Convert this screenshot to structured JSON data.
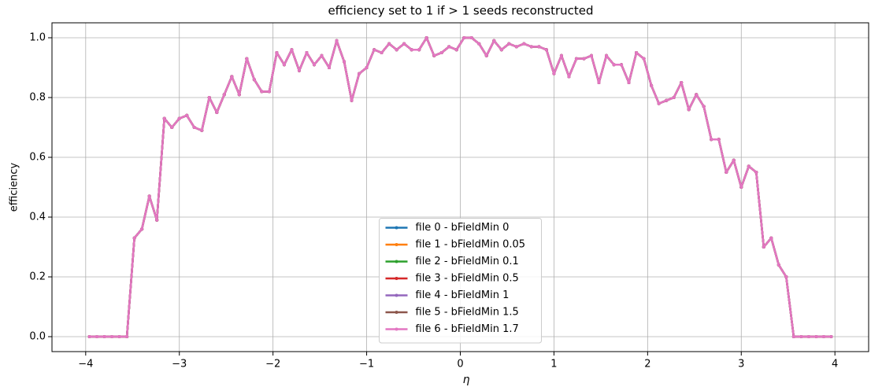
{
  "chart_data": {
    "type": "line",
    "title": "efficiency set to 1 if > 1 seeds reconstructed",
    "xlabel": "η",
    "ylabel": "efficiency",
    "x": [
      -3.96,
      -3.88,
      -3.8,
      -3.72,
      -3.64,
      -3.56,
      -3.48,
      -3.4,
      -3.32,
      -3.24,
      -3.16,
      -3.08,
      -3.0,
      -2.92,
      -2.84,
      -2.76,
      -2.68,
      -2.6,
      -2.52,
      -2.44,
      -2.36,
      -2.28,
      -2.2,
      -2.12,
      -2.04,
      -1.96,
      -1.88,
      -1.8,
      -1.72,
      -1.64,
      -1.56,
      -1.48,
      -1.4,
      -1.32,
      -1.24,
      -1.16,
      -1.08,
      -1.0,
      -0.92,
      -0.84,
      -0.76,
      -0.68,
      -0.6,
      -0.52,
      -0.44,
      -0.36,
      -0.28,
      -0.2,
      -0.12,
      -0.04,
      0.04,
      0.12,
      0.2,
      0.28,
      0.36,
      0.44,
      0.52,
      0.6,
      0.68,
      0.76,
      0.84,
      0.92,
      1.0,
      1.08,
      1.16,
      1.24,
      1.32,
      1.4,
      1.48,
      1.56,
      1.64,
      1.72,
      1.8,
      1.88,
      1.96,
      2.04,
      2.12,
      2.2,
      2.28,
      2.36,
      2.44,
      2.52,
      2.6,
      2.68,
      2.76,
      2.84,
      2.92,
      3.0,
      3.08,
      3.16,
      3.24,
      3.32,
      3.4,
      3.48,
      3.56,
      3.64,
      3.72,
      3.8,
      3.88,
      3.96
    ],
    "series": [
      {
        "name": "file 0 - bFieldMin 0",
        "color": "#1f77b4",
        "values": [
          0,
          0,
          0,
          0,
          0,
          0,
          0.33,
          0.36,
          0.47,
          0.39,
          0.73,
          0.7,
          0.73,
          0.74,
          0.7,
          0.69,
          0.8,
          0.75,
          0.81,
          0.87,
          0.81,
          0.93,
          0.86,
          0.82,
          0.82,
          0.95,
          0.91,
          0.96,
          0.89,
          0.95,
          0.91,
          0.94,
          0.9,
          0.99,
          0.92,
          0.79,
          0.88,
          0.9,
          0.96,
          0.95,
          0.98,
          0.96,
          0.98,
          0.96,
          0.96,
          1.0,
          0.94,
          0.95,
          0.97,
          0.96,
          1.0,
          1.0,
          0.98,
          0.94,
          0.99,
          0.96,
          0.98,
          0.97,
          0.98,
          0.97,
          0.97,
          0.96,
          0.88,
          0.94,
          0.87,
          0.93,
          0.93,
          0.94,
          0.85,
          0.94,
          0.91,
          0.91,
          0.85,
          0.95,
          0.93,
          0.84,
          0.78,
          0.79,
          0.8,
          0.85,
          0.76,
          0.81,
          0.77,
          0.66,
          0.66,
          0.55,
          0.59,
          0.5,
          0.57,
          0.55,
          0.3,
          0.33,
          0.24,
          0.2,
          0,
          0,
          0,
          0,
          0,
          0
        ]
      },
      {
        "name": "file 1 - bFieldMin 0.05",
        "color": "#ff7f0e",
        "values": [
          0,
          0,
          0,
          0,
          0,
          0,
          0.33,
          0.36,
          0.47,
          0.39,
          0.73,
          0.7,
          0.73,
          0.74,
          0.7,
          0.69,
          0.8,
          0.75,
          0.81,
          0.87,
          0.81,
          0.93,
          0.86,
          0.82,
          0.82,
          0.95,
          0.91,
          0.96,
          0.89,
          0.95,
          0.91,
          0.94,
          0.9,
          0.99,
          0.92,
          0.79,
          0.88,
          0.9,
          0.96,
          0.95,
          0.98,
          0.96,
          0.98,
          0.96,
          0.96,
          1.0,
          0.94,
          0.95,
          0.97,
          0.96,
          1.0,
          1.0,
          0.98,
          0.94,
          0.99,
          0.96,
          0.98,
          0.97,
          0.98,
          0.97,
          0.97,
          0.96,
          0.88,
          0.94,
          0.87,
          0.93,
          0.93,
          0.94,
          0.85,
          0.94,
          0.91,
          0.91,
          0.85,
          0.95,
          0.93,
          0.84,
          0.78,
          0.79,
          0.8,
          0.85,
          0.76,
          0.81,
          0.77,
          0.66,
          0.66,
          0.55,
          0.59,
          0.5,
          0.57,
          0.55,
          0.3,
          0.33,
          0.24,
          0.2,
          0,
          0,
          0,
          0,
          0,
          0
        ]
      },
      {
        "name": "file 2 - bFieldMin 0.1",
        "color": "#2ca02c",
        "values": [
          0,
          0,
          0,
          0,
          0,
          0,
          0.33,
          0.36,
          0.47,
          0.39,
          0.73,
          0.7,
          0.73,
          0.74,
          0.7,
          0.69,
          0.8,
          0.75,
          0.81,
          0.87,
          0.81,
          0.93,
          0.86,
          0.82,
          0.82,
          0.95,
          0.91,
          0.96,
          0.89,
          0.95,
          0.91,
          0.94,
          0.9,
          0.99,
          0.92,
          0.79,
          0.88,
          0.9,
          0.96,
          0.95,
          0.98,
          0.96,
          0.98,
          0.96,
          0.96,
          1.0,
          0.94,
          0.95,
          0.97,
          0.96,
          1.0,
          1.0,
          0.98,
          0.94,
          0.99,
          0.96,
          0.98,
          0.97,
          0.98,
          0.97,
          0.97,
          0.96,
          0.88,
          0.94,
          0.87,
          0.93,
          0.93,
          0.94,
          0.85,
          0.94,
          0.91,
          0.91,
          0.85,
          0.95,
          0.93,
          0.84,
          0.78,
          0.79,
          0.8,
          0.85,
          0.76,
          0.81,
          0.77,
          0.66,
          0.66,
          0.55,
          0.59,
          0.5,
          0.57,
          0.55,
          0.3,
          0.33,
          0.24,
          0.2,
          0,
          0,
          0,
          0,
          0,
          0
        ]
      },
      {
        "name": "file 3 - bFieldMin 0.5",
        "color": "#d62728",
        "values": [
          0,
          0,
          0,
          0,
          0,
          0,
          0.33,
          0.36,
          0.47,
          0.39,
          0.73,
          0.7,
          0.73,
          0.74,
          0.7,
          0.69,
          0.8,
          0.75,
          0.81,
          0.87,
          0.81,
          0.93,
          0.86,
          0.82,
          0.82,
          0.95,
          0.91,
          0.96,
          0.89,
          0.95,
          0.91,
          0.94,
          0.9,
          0.99,
          0.92,
          0.79,
          0.88,
          0.9,
          0.96,
          0.95,
          0.98,
          0.96,
          0.98,
          0.96,
          0.96,
          1.0,
          0.94,
          0.95,
          0.97,
          0.96,
          1.0,
          1.0,
          0.98,
          0.94,
          0.99,
          0.96,
          0.98,
          0.97,
          0.98,
          0.97,
          0.97,
          0.96,
          0.88,
          0.94,
          0.87,
          0.93,
          0.93,
          0.94,
          0.85,
          0.94,
          0.91,
          0.91,
          0.85,
          0.95,
          0.93,
          0.84,
          0.78,
          0.79,
          0.8,
          0.85,
          0.76,
          0.81,
          0.77,
          0.66,
          0.66,
          0.55,
          0.59,
          0.5,
          0.57,
          0.55,
          0.3,
          0.33,
          0.24,
          0.2,
          0,
          0,
          0,
          0,
          0,
          0
        ]
      },
      {
        "name": "file 4 - bFieldMin 1",
        "color": "#9467bd",
        "values": [
          0,
          0,
          0,
          0,
          0,
          0,
          0.33,
          0.36,
          0.47,
          0.39,
          0.73,
          0.7,
          0.73,
          0.74,
          0.7,
          0.69,
          0.8,
          0.75,
          0.81,
          0.87,
          0.81,
          0.93,
          0.86,
          0.82,
          0.82,
          0.95,
          0.91,
          0.96,
          0.89,
          0.95,
          0.91,
          0.94,
          0.9,
          0.99,
          0.92,
          0.79,
          0.88,
          0.9,
          0.96,
          0.95,
          0.98,
          0.96,
          0.98,
          0.96,
          0.96,
          1.0,
          0.94,
          0.95,
          0.97,
          0.96,
          1.0,
          1.0,
          0.98,
          0.94,
          0.99,
          0.96,
          0.98,
          0.97,
          0.98,
          0.97,
          0.97,
          0.96,
          0.88,
          0.94,
          0.87,
          0.93,
          0.93,
          0.94,
          0.85,
          0.94,
          0.91,
          0.91,
          0.85,
          0.95,
          0.93,
          0.84,
          0.78,
          0.79,
          0.8,
          0.85,
          0.76,
          0.81,
          0.77,
          0.66,
          0.66,
          0.55,
          0.59,
          0.5,
          0.57,
          0.55,
          0.3,
          0.33,
          0.24,
          0.2,
          0,
          0,
          0,
          0,
          0,
          0
        ]
      },
      {
        "name": "file 5 - bFieldMin 1.5",
        "color": "#8c564b",
        "values": [
          0,
          0,
          0,
          0,
          0,
          0,
          0.33,
          0.36,
          0.47,
          0.39,
          0.73,
          0.7,
          0.73,
          0.74,
          0.7,
          0.69,
          0.8,
          0.75,
          0.81,
          0.87,
          0.81,
          0.93,
          0.86,
          0.82,
          0.82,
          0.95,
          0.91,
          0.96,
          0.89,
          0.95,
          0.91,
          0.94,
          0.9,
          0.99,
          0.92,
          0.79,
          0.88,
          0.9,
          0.96,
          0.95,
          0.98,
          0.96,
          0.98,
          0.96,
          0.96,
          1.0,
          0.94,
          0.95,
          0.97,
          0.96,
          1.0,
          1.0,
          0.98,
          0.94,
          0.99,
          0.96,
          0.98,
          0.97,
          0.98,
          0.97,
          0.97,
          0.96,
          0.88,
          0.94,
          0.87,
          0.93,
          0.93,
          0.94,
          0.85,
          0.94,
          0.91,
          0.91,
          0.85,
          0.95,
          0.93,
          0.84,
          0.78,
          0.79,
          0.8,
          0.85,
          0.76,
          0.81,
          0.77,
          0.66,
          0.66,
          0.55,
          0.59,
          0.5,
          0.57,
          0.55,
          0.3,
          0.33,
          0.24,
          0.2,
          0,
          0,
          0,
          0,
          0,
          0
        ]
      },
      {
        "name": "file 6 - bFieldMin 1.7",
        "color": "#e377c2",
        "values": [
          0,
          0,
          0,
          0,
          0,
          0,
          0.33,
          0.36,
          0.47,
          0.39,
          0.73,
          0.7,
          0.73,
          0.74,
          0.7,
          0.69,
          0.8,
          0.75,
          0.81,
          0.87,
          0.81,
          0.93,
          0.86,
          0.82,
          0.82,
          0.95,
          0.91,
          0.96,
          0.89,
          0.95,
          0.91,
          0.94,
          0.9,
          0.99,
          0.92,
          0.79,
          0.88,
          0.9,
          0.96,
          0.95,
          0.98,
          0.96,
          0.98,
          0.96,
          0.96,
          1.0,
          0.94,
          0.95,
          0.97,
          0.96,
          1.0,
          1.0,
          0.98,
          0.94,
          0.99,
          0.96,
          0.98,
          0.97,
          0.98,
          0.97,
          0.97,
          0.96,
          0.88,
          0.94,
          0.87,
          0.93,
          0.93,
          0.94,
          0.85,
          0.94,
          0.91,
          0.91,
          0.85,
          0.95,
          0.93,
          0.84,
          0.78,
          0.79,
          0.8,
          0.85,
          0.76,
          0.81,
          0.77,
          0.66,
          0.66,
          0.55,
          0.59,
          0.5,
          0.57,
          0.55,
          0.3,
          0.33,
          0.24,
          0.2,
          0,
          0,
          0,
          0,
          0,
          0
        ]
      }
    ],
    "xlim": [
      -4.36,
      4.36
    ],
    "xticks": [
      {
        "value": -4,
        "label": "−4"
      },
      {
        "value": -3,
        "label": "−3"
      },
      {
        "value": -2,
        "label": "−2"
      },
      {
        "value": -1,
        "label": "−1"
      },
      0,
      1,
      2,
      3,
      4
    ],
    "ylim": [
      -0.05,
      1.05
    ],
    "yticks": [
      {
        "value": 0,
        "label": "0.0"
      },
      0.2,
      0.4,
      0.6,
      0.8,
      {
        "value": 1,
        "label": "1.0"
      }
    ],
    "grid": true,
    "legend": "lower center"
  }
}
